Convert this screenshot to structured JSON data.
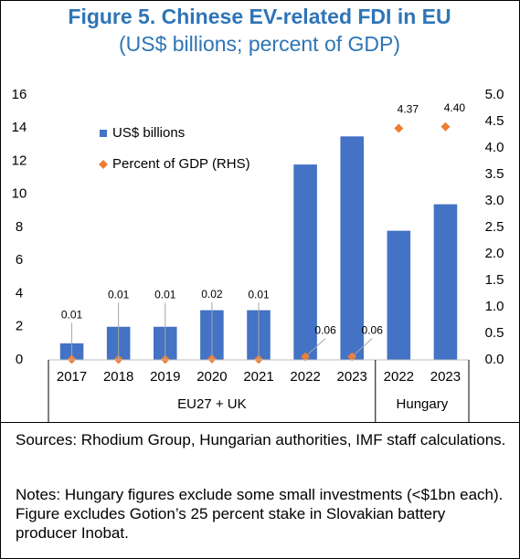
{
  "chart_data": {
    "type": "bar",
    "title": "Figure 5. Chinese EV-related FDI in EU",
    "subtitle": "(US$ billions; percent of GDP)",
    "categories": [
      "2017",
      "2018",
      "2019",
      "2020",
      "2021",
      "2022",
      "2023",
      "2022",
      "2023"
    ],
    "groups": [
      {
        "label": "EU27 + UK",
        "count": 7
      },
      {
        "label": "Hungary",
        "count": 2
      }
    ],
    "series": [
      {
        "name": "US$ billions",
        "type": "bar",
        "color": "#4472c4",
        "values": [
          1,
          2,
          2,
          3,
          3,
          11.8,
          13.5,
          7.8,
          9.4
        ]
      },
      {
        "name": "Percent of GDP (RHS)",
        "type": "scatter",
        "axis": "y2",
        "color": "#ed7d31",
        "values": [
          0.01,
          0.01,
          0.01,
          0.02,
          0.01,
          0.06,
          0.06,
          4.37,
          4.4
        ],
        "value_labels": [
          "0.01",
          "0.01",
          "0.01",
          "0.02",
          "0.01",
          "0.06",
          "0.06",
          "4.37",
          "4.40"
        ]
      }
    ],
    "ylim": [
      0,
      16
    ],
    "yticks": [
      0,
      2,
      4,
      6,
      8,
      10,
      12,
      14,
      16
    ],
    "y2lim": [
      0,
      5
    ],
    "y2ticks": [
      {
        "value": 0,
        "label": "0.0"
      },
      0.5,
      {
        "value": 1,
        "label": "1.0"
      },
      1.5,
      {
        "value": 2,
        "label": "2.0"
      },
      2.5,
      {
        "value": 3,
        "label": "3.0"
      },
      3.5,
      {
        "value": 4,
        "label": "4.0"
      },
      4.5,
      {
        "value": 5,
        "label": "5.0"
      }
    ],
    "legend": "upper left",
    "grid": false,
    "sources": "Sources:  Rhodium Group, Hungarian authorities, IMF staff calculations.",
    "notes": "Notes: Hungary figures exclude some small investments (<$1bn each). Figure excludes Gotion’s 25 percent stake in Slovakian battery producer Inobat."
  }
}
